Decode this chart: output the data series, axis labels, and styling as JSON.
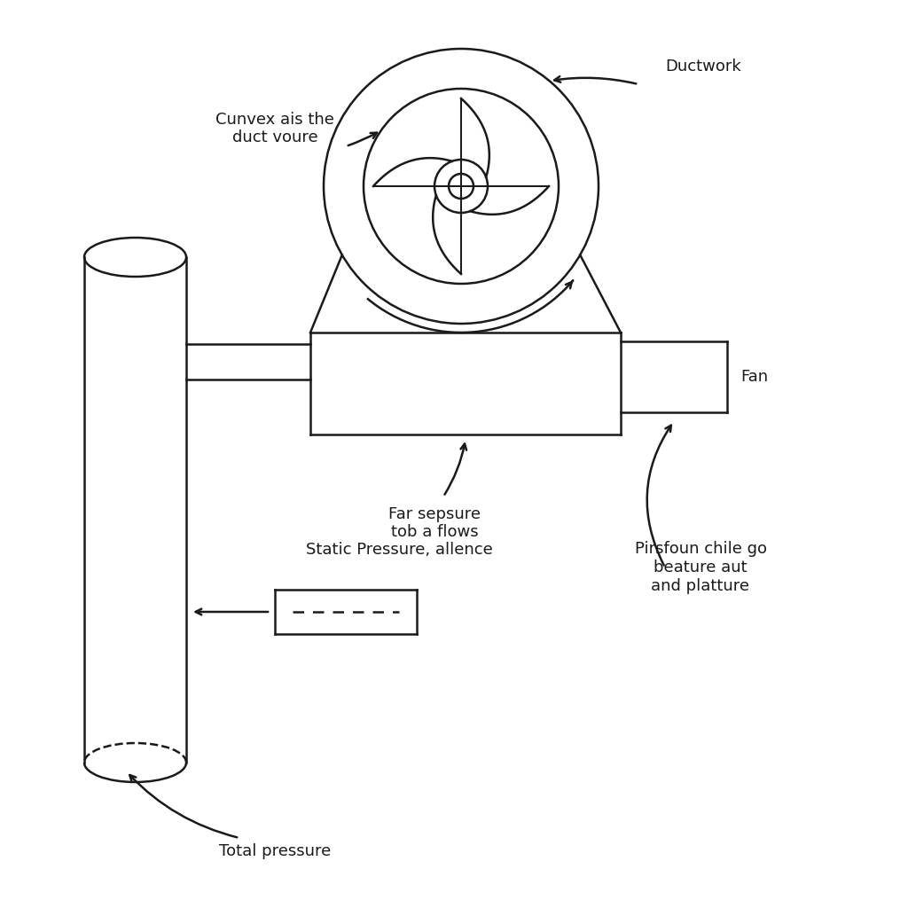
{
  "background_color": "#ffffff",
  "labels": {
    "cunvex": "Cunvex ais the\nduct voure",
    "ductwork": "Ductwork",
    "fan": "Fan",
    "far_sepsure": "Far sepsure\ntob a flows",
    "pirsfoun": "Pirsfoun chile go\nbeature aut\nand platture",
    "static_pressure": "Static Pressure, allence",
    "total_pressure": "Total pressure"
  },
  "line_color": "#1a1a1a",
  "text_color": "#1a1a1a",
  "font_size": 13
}
